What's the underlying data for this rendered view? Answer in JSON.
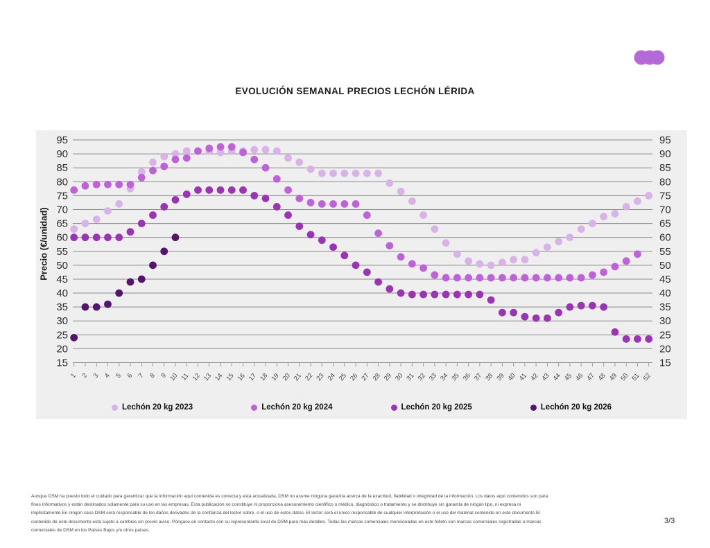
{
  "page": {
    "page_number": "3/3"
  },
  "logo": {
    "name": "dsm-three-dots-logo",
    "color": "#b568d8"
  },
  "chart_data": {
    "type": "scatter",
    "title": "EVOLUCIÓN SEMANAL PRECIOS LECHÓN LÉRIDA",
    "xlabel": "",
    "ylabel": "Precio (€/unidad)",
    "ylim": [
      15,
      95
    ],
    "grid": true,
    "legend_position": "bottom",
    "panel_background": "#f0eff0",
    "gridline_color": "#8a8a8a",
    "y_ticks": [
      15,
      20,
      25,
      30,
      35,
      40,
      45,
      50,
      55,
      60,
      65,
      70,
      75,
      80,
      85,
      90,
      95
    ],
    "x_ticks": [
      1,
      2,
      3,
      4,
      5,
      6,
      7,
      8,
      9,
      10,
      11,
      12,
      13,
      14,
      15,
      16,
      17,
      18,
      19,
      20,
      21,
      22,
      23,
      24,
      25,
      26,
      27,
      28,
      29,
      30,
      31,
      32,
      33,
      34,
      35,
      36,
      37,
      38,
      39,
      40,
      41,
      42,
      43,
      44,
      45,
      46,
      47,
      48,
      49,
      50,
      51,
      52
    ],
    "series": [
      {
        "name": "Lechón 20 kg 2023",
        "color": "#d9b3e8",
        "values": [
          63,
          65,
          66.5,
          69.5,
          72,
          77.5,
          83.5,
          87,
          89,
          90,
          91,
          91,
          91,
          90.5,
          91,
          91,
          91.5,
          91.5,
          91,
          88.5,
          87,
          84.5,
          83,
          83,
          83,
          83,
          83,
          83,
          79.5,
          76.5,
          73,
          68,
          63,
          58,
          54,
          51.5,
          50.5,
          50,
          51,
          52,
          52,
          54.5,
          56.5,
          58.5,
          60,
          63,
          65,
          67.5,
          68.5,
          71,
          73,
          75
        ]
      },
      {
        "name": "Lechón 20 kg 2024",
        "color": "#bf62d9",
        "values": [
          77,
          78.5,
          79,
          79,
          79,
          79,
          81.5,
          84,
          85.5,
          88,
          88.5,
          91,
          92,
          92.5,
          92.5,
          90.5,
          88,
          85,
          81,
          77,
          74,
          72.5,
          72,
          72,
          72,
          72,
          68,
          61.5,
          57,
          53,
          50.5,
          49,
          46.5,
          45.5,
          45.5,
          45.5,
          45.5,
          45.5,
          45.5,
          45.5,
          45.5,
          45.5,
          45.5,
          45.5,
          45.5,
          45.5,
          46.5,
          47.5,
          49.5,
          51.5,
          54,
          null
        ]
      },
      {
        "name": "Lechón 20 kg 2025",
        "color": "#9a34b5",
        "values": [
          60,
          60,
          60,
          60,
          60,
          62,
          65,
          68,
          71,
          73.5,
          75.5,
          77,
          77,
          77,
          77,
          77,
          75,
          74,
          71,
          68,
          64,
          61,
          59,
          56.5,
          53.5,
          50,
          47.5,
          44,
          41.5,
          40,
          39.5,
          39.5,
          39.5,
          39.5,
          39.5,
          39.5,
          39.5,
          37.5,
          33,
          33,
          31.5,
          31,
          31,
          33,
          35,
          35.5,
          35.5,
          35,
          26,
          23.5,
          23.5,
          23.5
        ]
      },
      {
        "name": "Lechón 20 kg 2026",
        "color": "#54156d",
        "values": [
          24,
          35,
          35,
          36,
          40,
          44,
          45,
          50,
          55,
          60
        ]
      }
    ]
  },
  "footer": {
    "lines": [
      "Aunque DSM ha puesto todo el cuidado para garantizar que la información aquí contenida es correcta y está actualizada, DSM no asume ninguna garantía acerca de la exactitud, fiabilidad o integridad de la información. Los datos aquí contenidos son para",
      "fines informativos y están destinados solamente para su uso en las empresas. Esta publicación no constituye ni proporciona asesoramiento científico o médico, diagnóstico o tratamiento y se distribuye sin garantía de ningún tipo, ni expresa ni",
      "implícitamente En ningún caso DSM será responsable de los daños derivados de la confianza del lector sobre, o el uso de estos datos. El lector será el único responsable de cualquier interpretación o el uso del material contenido en este documento El",
      "contenido de este documento está sujeto a cambios sin previo aviso. Póngase en contacto con su representante local de DSM para más detalles. Todas las marcas comerciales mencionadas en este folleto son marcas comerciales registradas o marcas",
      "comerciales de DSM en los Países Bajos y/u otros países."
    ]
  }
}
